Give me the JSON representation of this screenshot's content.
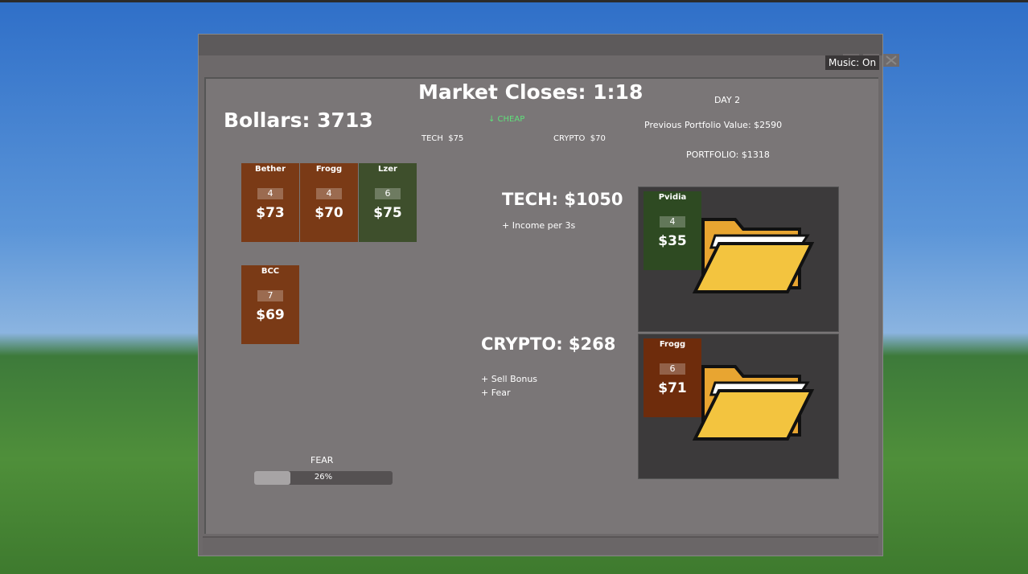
{
  "music": "Music: On",
  "timer": "Market Closes: 1:18",
  "bollars": "Bollars: 3713",
  "day": "DAY 2",
  "previous_portfolio": "Previous Portfolio Value: $2590",
  "portfolio": "PORTFOLIO: $1318",
  "hint": "↓ CHEAP",
  "prices": [
    "TECH  $75",
    "CRYPTO  $70"
  ],
  "cards": [
    {
      "name": "Bether",
      "count": "4",
      "price": "$73",
      "color": "#7a3a16"
    },
    {
      "name": "Frogg",
      "count": "4",
      "price": "$70",
      "color": "#7a3a16"
    },
    {
      "name": "Lzer",
      "count": "6",
      "price": "$75",
      "color": "#3e4f2c"
    },
    {
      "name": "BCC",
      "count": "7",
      "price": "$69",
      "color": "#7a3a16"
    }
  ],
  "sectors": [
    {
      "title": "TECH: $1050",
      "notes": [
        "+ Income per 3s"
      ],
      "card": {
        "name": "Pvidia",
        "count": "4",
        "price": "$35",
        "color": "#2e4a22"
      }
    },
    {
      "title": "CRYPTO: $268",
      "notes": [
        "+ Sell Bonus",
        "+ Fear"
      ],
      "card": {
        "name": "Frogg",
        "count": "6",
        "price": "$71",
        "color": "#6e2c0c"
      }
    }
  ],
  "fear": {
    "label": "FEAR",
    "value": 26,
    "value_label": "26%"
  }
}
